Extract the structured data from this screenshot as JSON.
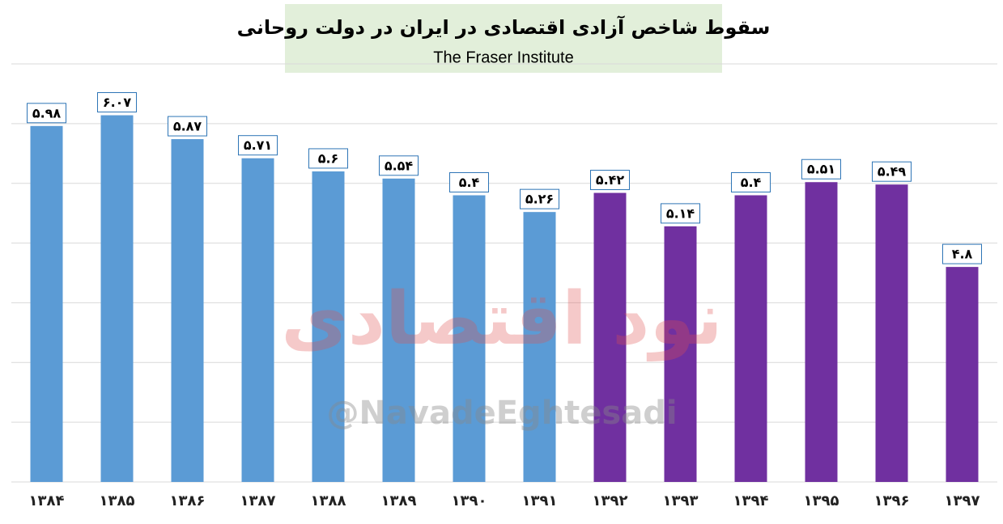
{
  "chart_data": {
    "type": "bar",
    "title": "سقوط شاخص آزادی اقتصادی در ایران در دولت روحانی",
    "subtitle": "The Fraser Institute",
    "watermark": "نود اقتصادی",
    "watermark_handle": "@NavadeEghtesadi",
    "categories": [
      "۱۳۸۴",
      "۱۳۸۵",
      "۱۳۸۶",
      "۱۳۸۷",
      "۱۳۸۸",
      "۱۳۸۹",
      "۱۳۹۰",
      "۱۳۹۱",
      "۱۳۹۲",
      "۱۳۹۳",
      "۱۳۹۴",
      "۱۳۹۵",
      "۱۳۹۶",
      "۱۳۹۷"
    ],
    "values": [
      5.98,
      6.07,
      5.87,
      5.71,
      5.6,
      5.54,
      5.4,
      5.26,
      5.42,
      5.14,
      5.4,
      5.51,
      5.49,
      4.8
    ],
    "value_labels": [
      "۵.۹۸",
      "۶.۰۷",
      "۵.۸۷",
      "۵.۷۱",
      "۵.۶",
      "۵.۵۴",
      "۵.۴",
      "۵.۲۶",
      "۵.۴۲",
      "۵.۱۴",
      "۵.۴",
      "۵.۵۱",
      "۵.۴۹",
      "۴.۸"
    ],
    "colors": [
      "#5b9bd5",
      "#5b9bd5",
      "#5b9bd5",
      "#5b9bd5",
      "#5b9bd5",
      "#5b9bd5",
      "#5b9bd5",
      "#5b9bd5",
      "#7030a0",
      "#7030a0",
      "#7030a0",
      "#7030a0",
      "#7030a0",
      "#7030a0"
    ],
    "ylim": [
      3,
      6.5
    ],
    "yticks": [
      3,
      3.5,
      4,
      4.5,
      5,
      5.5,
      6,
      6.5
    ],
    "grid": true
  }
}
